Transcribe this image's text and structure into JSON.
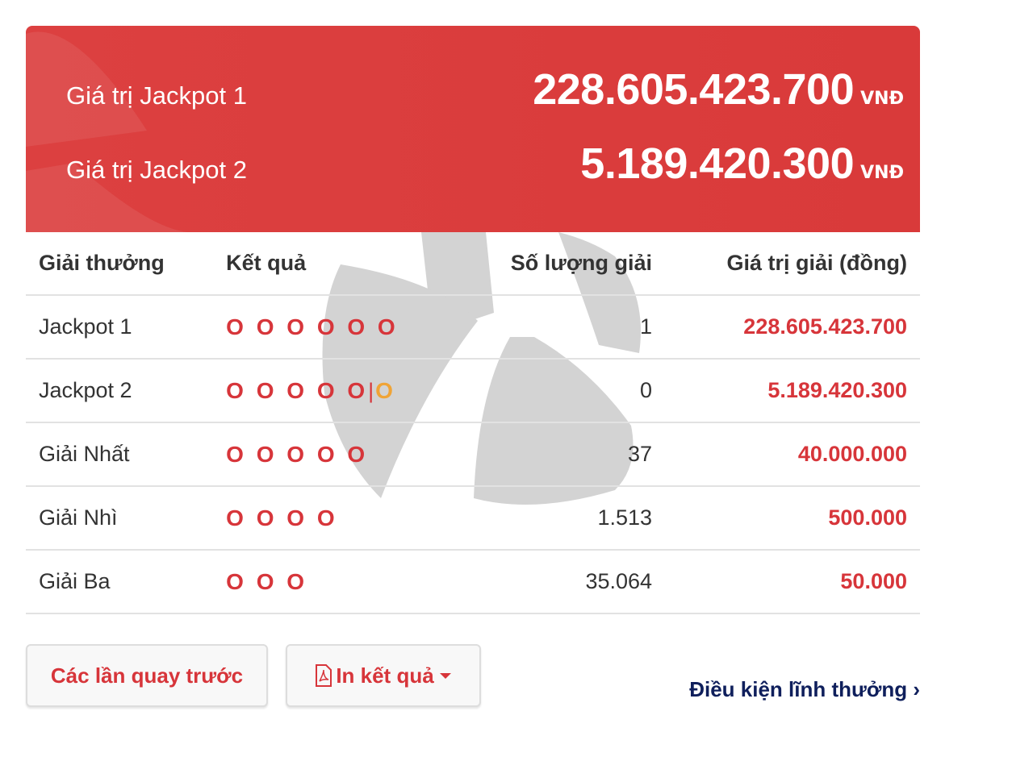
{
  "jackpots": [
    {
      "label": "Giá trị Jackpot 1",
      "value": "228.605.423.700",
      "currency": "VNĐ"
    },
    {
      "label": "Giá trị Jackpot 2",
      "value": "5.189.420.300",
      "currency": "VNĐ"
    }
  ],
  "table": {
    "headers": [
      "Giải thưởng",
      "Kết quả",
      "Số lượng giải",
      "Giá trị giải (đồng)"
    ],
    "rows": [
      {
        "prize": "Jackpot 1",
        "result": "O O O O O O",
        "extra": "",
        "count": "1",
        "value": "228.605.423.700"
      },
      {
        "prize": "Jackpot 2",
        "result": "O O O O O",
        "extra": "O",
        "count": "0",
        "value": "5.189.420.300"
      },
      {
        "prize": "Giải Nhất",
        "result": "O O O O O",
        "extra": "",
        "count": "37",
        "value": "40.000.000"
      },
      {
        "prize": "Giải Nhì",
        "result": "O O O O",
        "extra": "",
        "count": "1.513",
        "value": "500.000"
      },
      {
        "prize": "Giải Ba",
        "result": "O O O",
        "extra": "",
        "count": "35.064",
        "value": "50.000"
      }
    ]
  },
  "buttons": {
    "previous": "Các lần quay trước",
    "print": "In kết quả"
  },
  "link": {
    "conditions": "Điều kiện lĩnh thưởng"
  },
  "colors": {
    "header_red": "#d93a3a",
    "prize_red": "#d7353a",
    "extra_ball": "#f0a436",
    "link_navy": "#0f1f5c"
  },
  "icons": {
    "print": "pdf-file-icon",
    "dropdown": "caret-down-icon",
    "link": "chevron-right-icon"
  }
}
